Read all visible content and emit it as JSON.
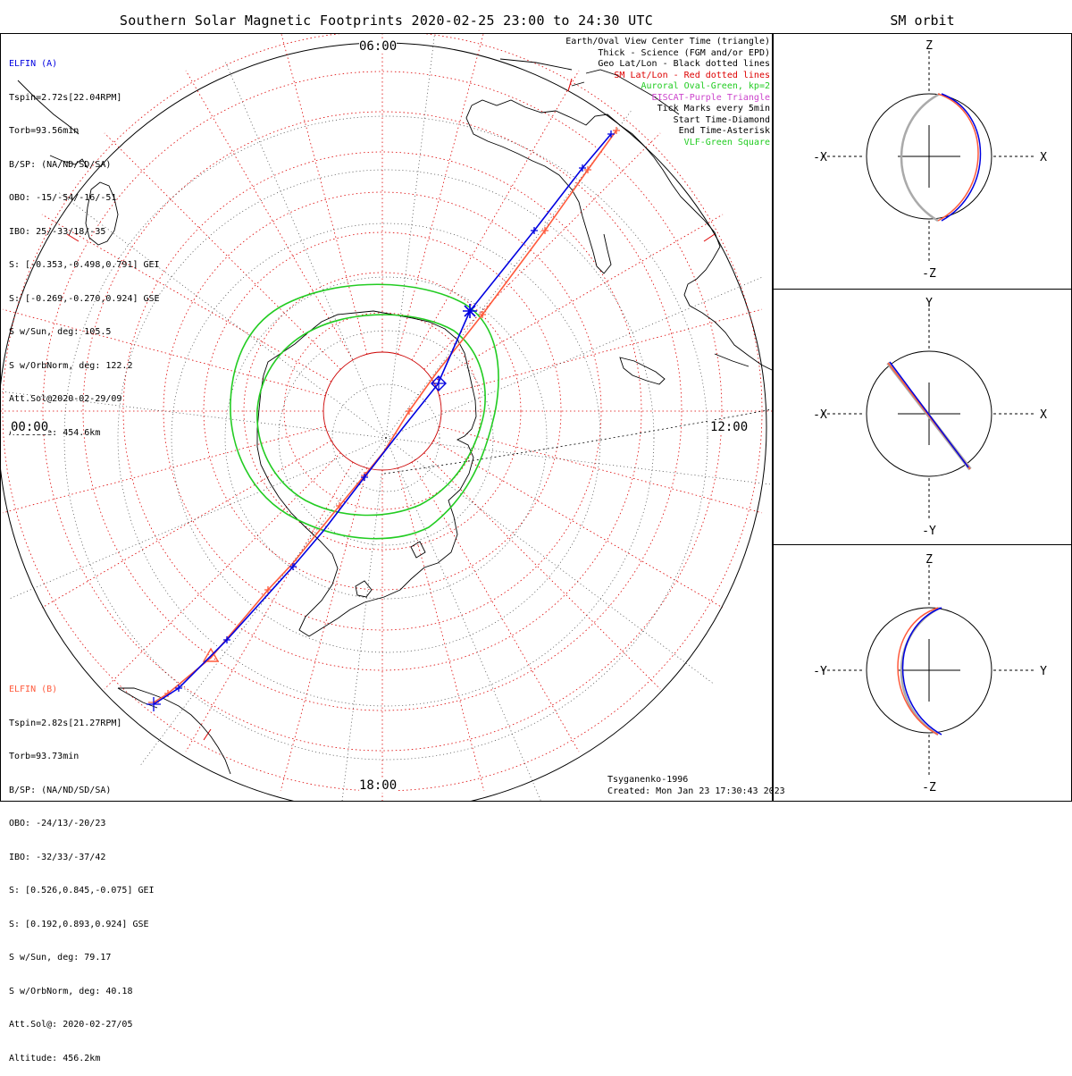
{
  "title": "Southern Solar Magnetic Footprints 2020-02-25 23:00 to 24:30 UTC",
  "orbit_title": "SM orbit",
  "colors": {
    "probe_a": "#0000e0",
    "probe_b": "#ff5a3c",
    "oval": "#22cc22",
    "sm_grid": "#dd0000",
    "eiscat": "#cc44cc",
    "vlf": "#22cc22",
    "orbit_gray": "#aaaaaa"
  },
  "elfin_a": {
    "name": "ELFIN (A)",
    "lines": [
      "Tspin=2.72s[22.04RPM]",
      "Torb=93.56min",
      "B/SP: (NA/ND/SD/SA)",
      "OBO: -15/-54/-16/-51",
      "IBO: 25/-33/18/-35",
      "S: [-0.353,-0.498,0.791] GEI",
      "S: [-0.269,-0.270,0.924] GSE",
      "S w/Sun, deg: 105.5",
      "S w/OrbNorm, deg: 122.2",
      "Att.Sol@2020-02-29/09",
      "Altitude: 454.6km"
    ]
  },
  "elfin_b": {
    "name": "ELFIN (B)",
    "lines": [
      "Tspin=2.82s[21.27RPM]",
      "Torb=93.73min",
      "B/SP: (NA/ND/SD/SA)",
      "OBO: -24/13/-20/23",
      "IBO: -32/33/-37/42",
      "S: [0.526,0.845,-0.075] GEI",
      "S: [0.192,0.893,0.924] GSE",
      "S w/Sun, deg: 79.17",
      "S w/OrbNorm, deg: 40.18",
      "Att.Sol@: 2020-02-27/05",
      "Altitude: 456.2km"
    ]
  },
  "legend": [
    {
      "text": "Earth/Oval View Center Time (triangle)",
      "color": "#000000"
    },
    {
      "text": "Thick - Science (FGM and/or EPD)",
      "color": "#000000"
    },
    {
      "text": "Geo Lat/Lon - Black dotted lines",
      "color": "#000000"
    },
    {
      "text": "SM Lat/Lon - Red dotted lines",
      "color": "#dd0000"
    },
    {
      "text": "Auroral Oval-Green, kp=2",
      "color": "#22cc22"
    },
    {
      "text": "EISCAT-Purple Triangle",
      "color": "#cc44cc"
    },
    {
      "text": "Tick Marks every 5min",
      "color": "#000000"
    },
    {
      "text": "Start Time-Diamond",
      "color": "#000000"
    },
    {
      "text": "End Time-Asterisk",
      "color": "#000000"
    },
    {
      "text": "VLF-Green Square",
      "color": "#22cc22"
    }
  ],
  "map_labels": {
    "top": "06:00",
    "bottom": "18:00",
    "left": "00:00",
    "right": "12:00"
  },
  "credits": {
    "model": "Tsyganenko-1996",
    "created": "Created: Mon Jan 23 17:30:43 2023"
  },
  "orbit_panels": [
    {
      "top": "Z",
      "bottom": "-Z",
      "left": "-X",
      "right": "X"
    },
    {
      "top": "Y",
      "bottom": "-Y",
      "left": "-X",
      "right": "X"
    },
    {
      "top": "Z",
      "bottom": "-Z",
      "left": "-Y",
      "right": "Y"
    }
  ]
}
